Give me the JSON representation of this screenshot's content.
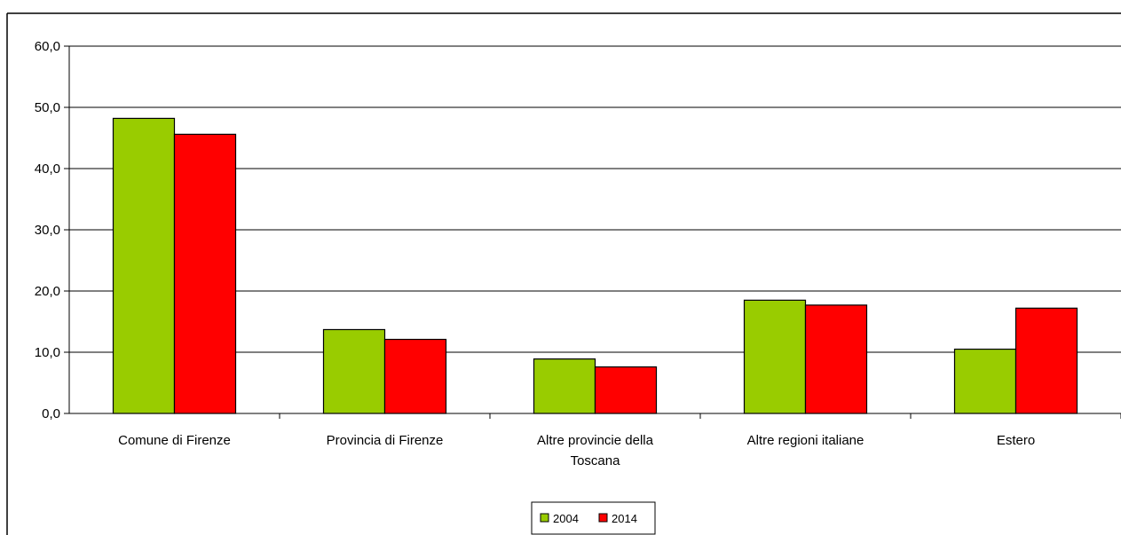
{
  "colors": {
    "series_2004": "#99cc00",
    "series_2014": "#ff0000",
    "gridline": "#000000",
    "bar_stroke": "#000000"
  },
  "chart_data": {
    "type": "bar",
    "categories": [
      [
        "Comune di Firenze"
      ],
      [
        "Provincia di Firenze"
      ],
      [
        "Altre provincie della",
        "Toscana"
      ],
      [
        "Altre regioni italiane"
      ],
      [
        "Estero"
      ]
    ],
    "series": [
      {
        "name": "2004",
        "color": "#99cc00",
        "values": [
          48.2,
          13.7,
          8.9,
          18.5,
          10.5
        ]
      },
      {
        "name": "2014",
        "color": "#ff0000",
        "values": [
          45.6,
          12.1,
          7.6,
          17.7,
          17.2
        ]
      }
    ],
    "ylim": [
      0,
      60
    ],
    "yticks": [
      "0,0",
      "10,0",
      "20,0",
      "30,0",
      "40,0",
      "50,0",
      "60,0"
    ],
    "grid": true,
    "legend_position": "bottom",
    "title": "",
    "xlabel": "",
    "ylabel": ""
  }
}
